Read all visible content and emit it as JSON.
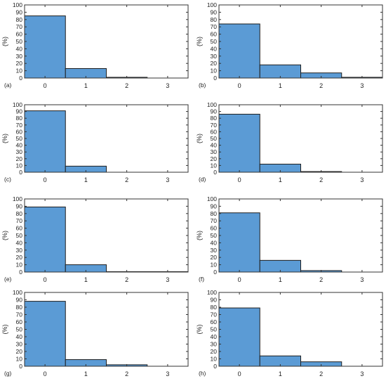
{
  "colors": {
    "bar_fill": "#5b9bd5",
    "bar_stroke": "#1f1f1f",
    "axis": "#333333"
  },
  "chart_data": [
    {
      "type": "bar",
      "panel_label": "(a)",
      "ylabel": "(%)",
      "xlabel": "",
      "title": "",
      "categories": [
        "0",
        "1",
        "2",
        "3"
      ],
      "values": [
        85,
        13,
        1,
        0
      ],
      "ylim": [
        0,
        100
      ],
      "yticks": [
        "0",
        "10",
        "20",
        "30",
        "40",
        "50",
        "60",
        "70",
        "80",
        "90",
        "100"
      ],
      "grid": false
    },
    {
      "type": "bar",
      "panel_label": "(b)",
      "ylabel": "(%)",
      "xlabel": "",
      "title": "",
      "categories": [
        "0",
        "1",
        "2",
        "3"
      ],
      "values": [
        74,
        18,
        7,
        1
      ],
      "ylim": [
        0,
        100
      ],
      "yticks": [
        "0",
        "10",
        "20",
        "30",
        "40",
        "50",
        "60",
        "70",
        "80",
        "90",
        "100"
      ],
      "grid": false
    },
    {
      "type": "bar",
      "panel_label": "(c)",
      "ylabel": "(%)",
      "xlabel": "",
      "title": "",
      "categories": [
        "0",
        "1",
        "2",
        "3"
      ],
      "values": [
        91,
        9,
        0,
        0
      ],
      "ylim": [
        0,
        100
      ],
      "yticks": [
        "0",
        "10",
        "20",
        "30",
        "40",
        "50",
        "60",
        "70",
        "80",
        "90",
        "100"
      ],
      "grid": false
    },
    {
      "type": "bar",
      "panel_label": "(d)",
      "ylabel": "(%)",
      "xlabel": "",
      "title": "",
      "categories": [
        "0",
        "1",
        "2",
        "3"
      ],
      "values": [
        86,
        12,
        1,
        0
      ],
      "ylim": [
        0,
        100
      ],
      "yticks": [
        "0",
        "10",
        "20",
        "30",
        "40",
        "50",
        "60",
        "70",
        "80",
        "90",
        "100"
      ],
      "grid": false
    },
    {
      "type": "bar",
      "panel_label": "(e)",
      "ylabel": "(%)",
      "xlabel": "",
      "title": "",
      "categories": [
        "0",
        "1",
        "2",
        "3"
      ],
      "values": [
        89,
        10,
        0.5,
        0.5
      ],
      "ylim": [
        0,
        100
      ],
      "yticks": [
        "0",
        "10",
        "20",
        "30",
        "40",
        "50",
        "60",
        "70",
        "80",
        "90",
        "100"
      ],
      "grid": false
    },
    {
      "type": "bar",
      "panel_label": "(f)",
      "ylabel": "(%)",
      "xlabel": "",
      "title": "",
      "categories": [
        "0",
        "1",
        "2",
        "3"
      ],
      "values": [
        81,
        16,
        2,
        0
      ],
      "ylim": [
        0,
        100
      ],
      "yticks": [
        "0",
        "10",
        "20",
        "30",
        "40",
        "50",
        "60",
        "70",
        "80",
        "90",
        "100"
      ],
      "grid": false
    },
    {
      "type": "bar",
      "panel_label": "(g)",
      "ylabel": "(%)",
      "xlabel": "",
      "title": "",
      "categories": [
        "0",
        "1",
        "2",
        "3"
      ],
      "values": [
        88,
        9,
        2,
        0
      ],
      "ylim": [
        0,
        100
      ],
      "yticks": [
        "0",
        "10",
        "20",
        "30",
        "40",
        "50",
        "60",
        "70",
        "80",
        "90",
        "100"
      ],
      "grid": false
    },
    {
      "type": "bar",
      "panel_label": "(h)",
      "ylabel": "(%)",
      "xlabel": "",
      "title": "",
      "categories": [
        "0",
        "1",
        "2",
        "3"
      ],
      "values": [
        79,
        14,
        6,
        0
      ],
      "ylim": [
        0,
        100
      ],
      "yticks": [
        "0",
        "10",
        "20",
        "30",
        "40",
        "50",
        "60",
        "70",
        "80",
        "90",
        "100"
      ],
      "grid": false
    }
  ]
}
